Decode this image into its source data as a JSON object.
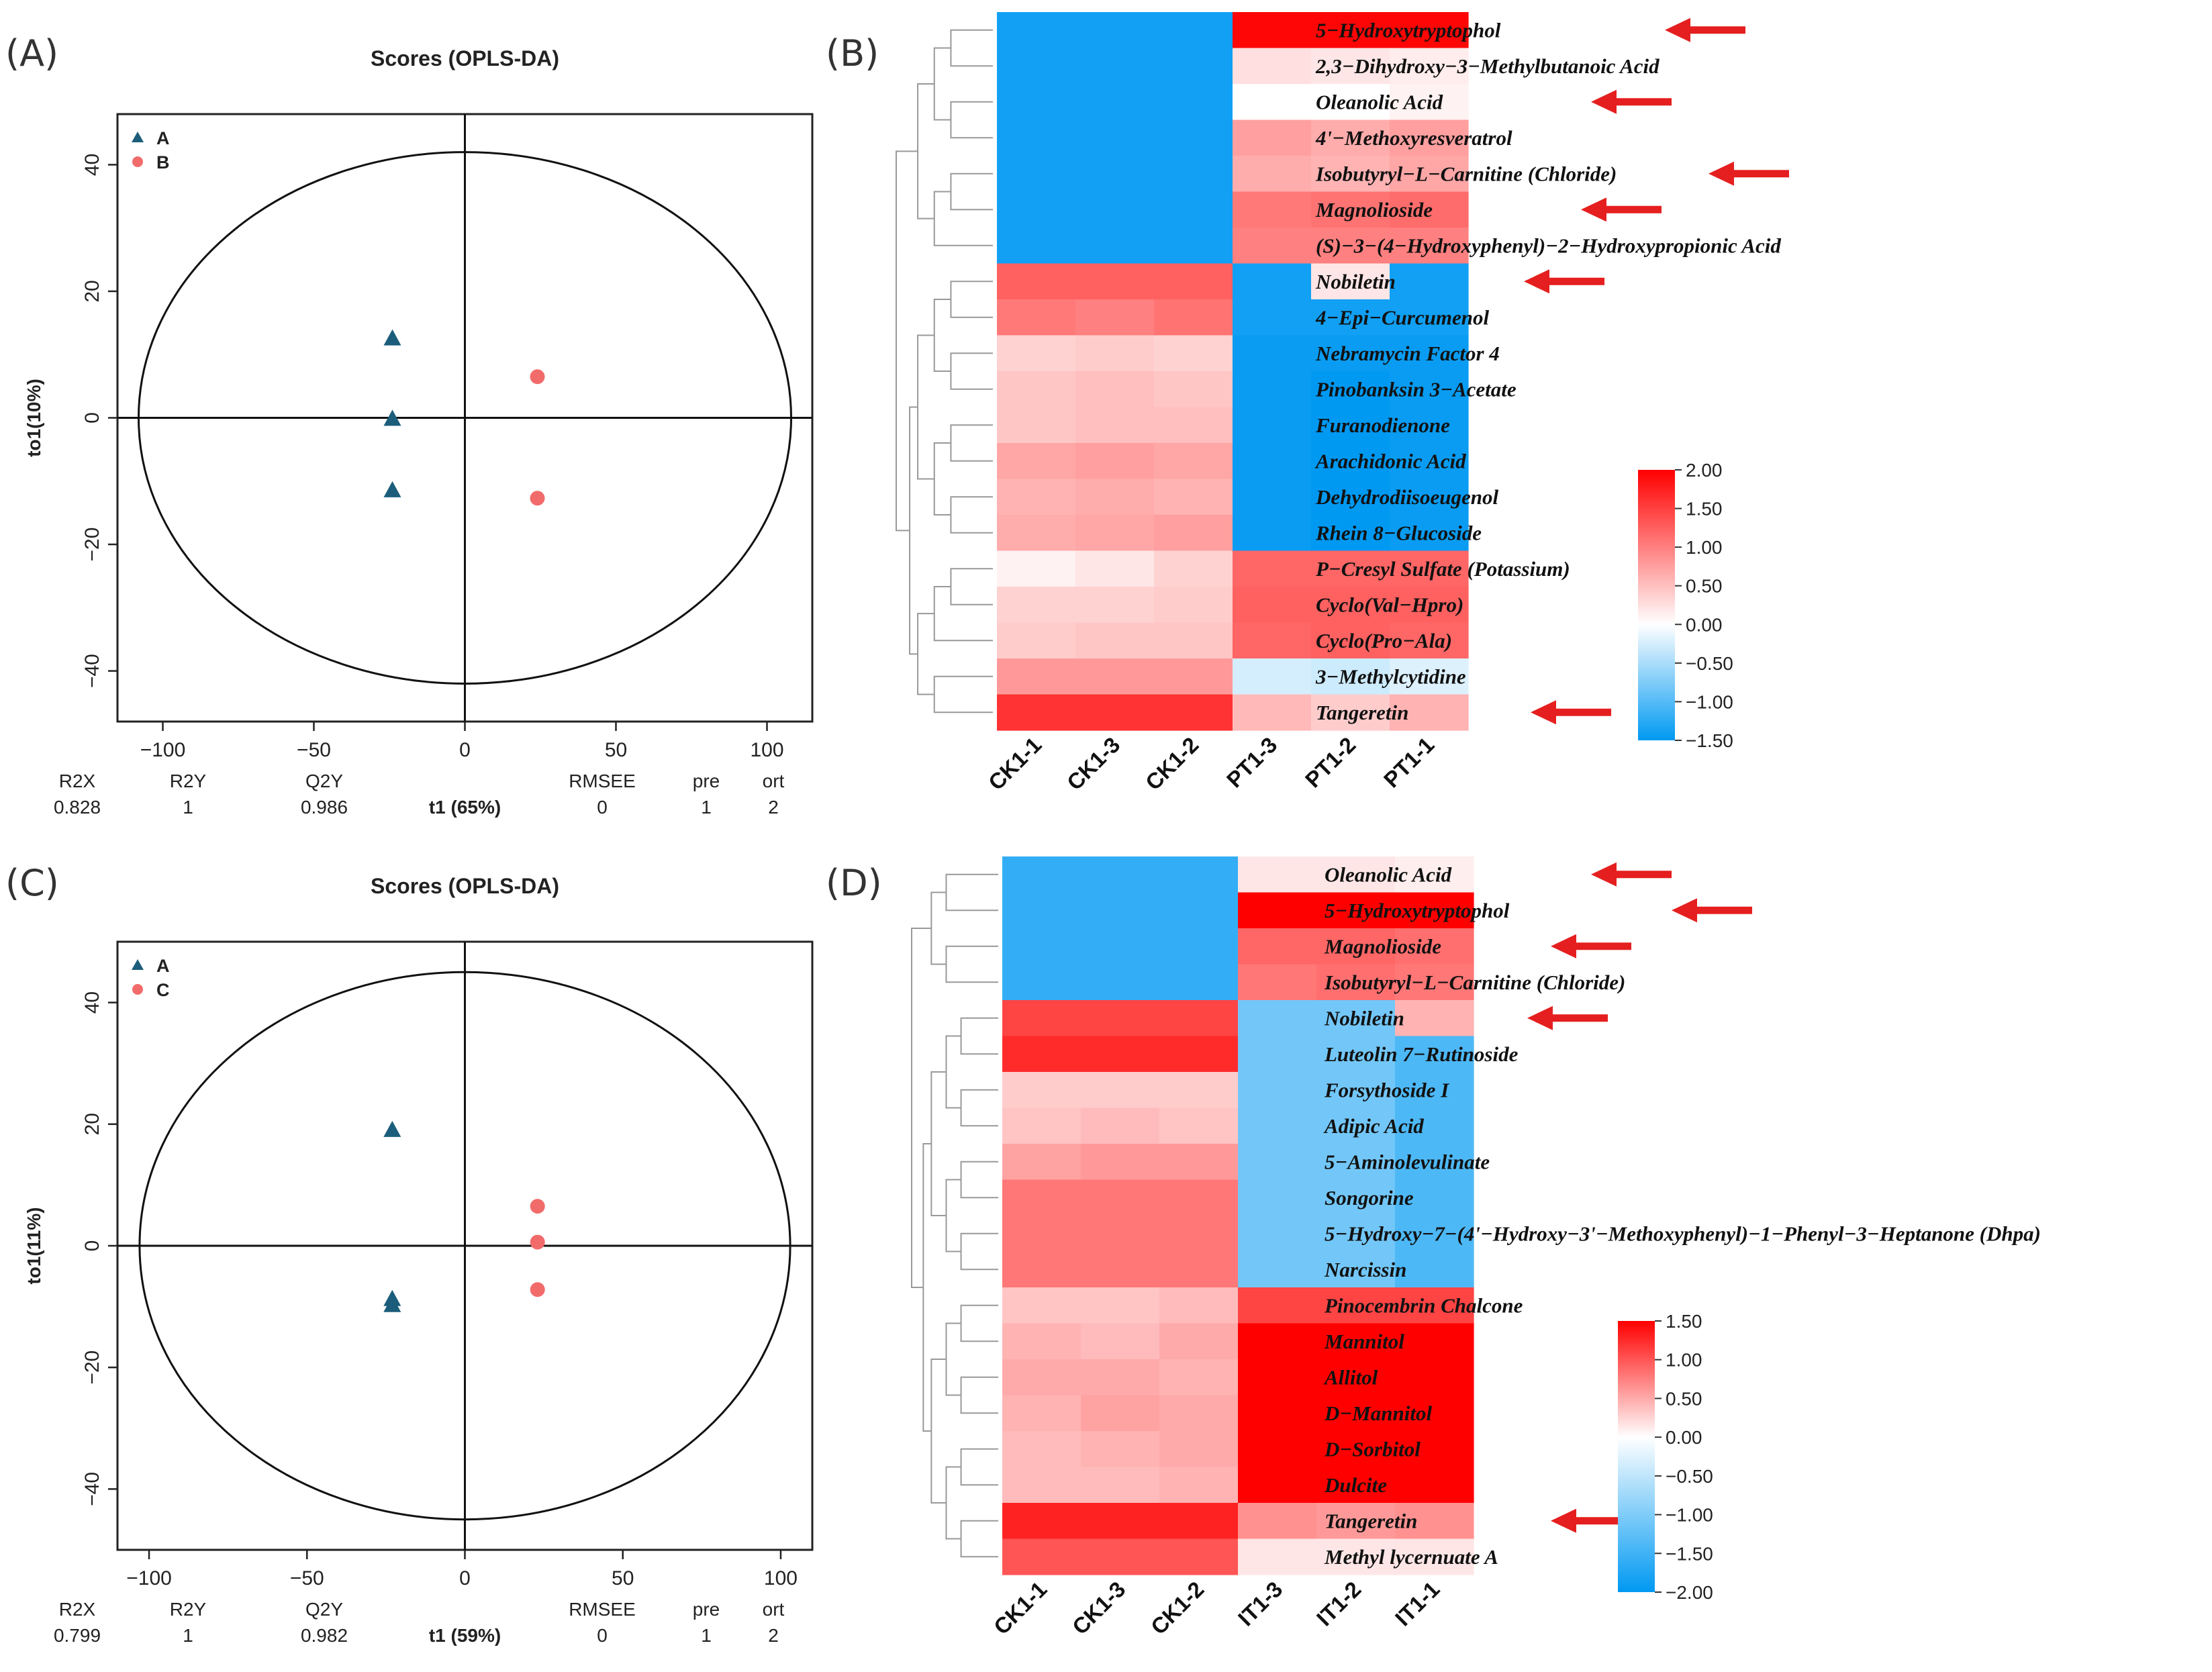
{
  "panel_labels": {
    "a": "(A)",
    "b": "(B)",
    "c": "(C)",
    "d": "(D)"
  },
  "chart_data": [
    {
      "type": "scatter",
      "title": "Scores (OPLS-DA)",
      "xlabel": "t1 (65%)",
      "ylabel": "to1(10%)",
      "xlim": [
        -115,
        115
      ],
      "ylim": [
        -48,
        48
      ],
      "xticks": [
        -100,
        -50,
        0,
        50,
        100
      ],
      "yticks": [
        -40,
        -20,
        0,
        20,
        40
      ],
      "xtick_labels": [
        "−100",
        "−50",
        "0",
        "50",
        "100"
      ],
      "ytick_labels": [
        "−40",
        "−20",
        "0",
        "20",
        "40"
      ],
      "ellipse": {
        "rx": 108,
        "ry": 42
      },
      "legend": {
        "position": "top-left",
        "entries": [
          "A",
          "B"
        ]
      },
      "series": [
        {
          "name": "A",
          "marker": "triangle",
          "color": "#1b5d7b",
          "points": [
            [
              -24,
              12.5
            ],
            [
              -24,
              -0.2
            ],
            [
              -24,
              -11.5
            ]
          ]
        },
        {
          "name": "B",
          "marker": "circle",
          "color": "#f26b6b",
          "points": [
            [
              24,
              6.5
            ],
            [
              24,
              -12.7
            ]
          ]
        }
      ],
      "stats": {
        "labels": [
          "R2X",
          "R2Y",
          "Q2Y",
          "RMSEE",
          "pre",
          "ort"
        ],
        "values": [
          "0.828",
          "1",
          "0.986",
          "0",
          "1",
          "2"
        ]
      }
    },
    {
      "type": "heatmap",
      "columns": [
        "CK1-1",
        "CK1-3",
        "CK1-2",
        "PT1-3",
        "PT1-2",
        "PT1-1"
      ],
      "rows": [
        "5−Hydroxytryptophol",
        "2,3−Dihydroxy−3−Methylbutanoic Acid",
        "Oleanolic Acid",
        "4'−Methoxyresveratrol",
        "Isobutyryl−L−Carnitine (Chloride)",
        "Magnolioside",
        "(S)−3−(4−Hydroxyphenyl)−2−Hydroxypropionic Acid",
        "Nobiletin",
        "4−Epi−Curcumenol",
        "Nebramycin Factor 4",
        "Pinobanksin 3−Acetate",
        "Furanodienone",
        "Arachidonic Acid",
        "Dehydrodiisoeugenol",
        "Rhein 8−Glucoside",
        "P−Cresyl Sulfate (Potassium)",
        "Cyclo(Val−Hpro)",
        "Cyclo(Pro−Ala)",
        "3−Methylcytidine",
        "Tangeretin"
      ],
      "arrow_rows": [
        0,
        2,
        4,
        5,
        7,
        19
      ],
      "values": [
        [
          -1.4,
          -1.4,
          -1.4,
          1.95,
          1.95,
          1.95
        ],
        [
          -1.4,
          -1.4,
          -1.4,
          0.25,
          0.2,
          0.15
        ],
        [
          -1.4,
          -1.4,
          -1.4,
          0.0,
          0.0,
          0.1
        ],
        [
          -1.4,
          -1.4,
          -1.4,
          0.75,
          0.65,
          0.75
        ],
        [
          -1.4,
          -1.4,
          -1.4,
          0.65,
          0.6,
          0.7
        ],
        [
          -1.4,
          -1.4,
          -1.4,
          1.05,
          1.1,
          1.15
        ],
        [
          -1.4,
          -1.4,
          -1.4,
          1.0,
          1.0,
          1.0
        ],
        [
          1.25,
          1.25,
          1.25,
          -1.4,
          0.2,
          -1.4
        ],
        [
          1.05,
          1.0,
          1.1,
          -1.4,
          -1.4,
          -1.4
        ],
        [
          0.35,
          0.4,
          0.35,
          -1.45,
          -1.45,
          -1.45
        ],
        [
          0.45,
          0.5,
          0.45,
          -1.45,
          -1.5,
          -1.45
        ],
        [
          0.45,
          0.5,
          0.5,
          -1.45,
          -1.5,
          -1.45
        ],
        [
          0.7,
          0.75,
          0.7,
          -1.45,
          -1.5,
          -1.45
        ],
        [
          0.6,
          0.65,
          0.6,
          -1.45,
          -1.5,
          -1.45
        ],
        [
          0.65,
          0.7,
          0.75,
          -1.45,
          -1.5,
          -1.45
        ],
        [
          0.1,
          0.2,
          0.35,
          1.2,
          1.2,
          1.2
        ],
        [
          0.35,
          0.35,
          0.4,
          1.25,
          1.25,
          1.25
        ],
        [
          0.4,
          0.45,
          0.45,
          1.2,
          1.25,
          1.2
        ],
        [
          0.8,
          0.8,
          0.8,
          -0.25,
          -0.3,
          -0.2
        ],
        [
          1.6,
          1.6,
          1.6,
          0.55,
          0.4,
          0.6
        ]
      ],
      "colorbar": {
        "min": -1.5,
        "max": 2.0,
        "tick_labels": [
          "2.00",
          "1.50",
          "1.00",
          "0.50",
          "0.00",
          "−0.50",
          "−1.00",
          "−1.50"
        ]
      }
    },
    {
      "type": "scatter",
      "title": "Scores (OPLS-DA)",
      "xlabel": "t1 (59%)",
      "ylabel": "to1(11%)",
      "xlim": [
        -110,
        110
      ],
      "ylim": [
        -50,
        50
      ],
      "xticks": [
        -100,
        -50,
        0,
        50,
        100
      ],
      "yticks": [
        -40,
        -20,
        0,
        20,
        40
      ],
      "xtick_labels": [
        "−100",
        "−50",
        "0",
        "50",
        "100"
      ],
      "ytick_labels": [
        "−40",
        "−20",
        "0",
        "20",
        "40"
      ],
      "ellipse": {
        "rx": 103,
        "ry": 45
      },
      "legend": {
        "position": "top-left",
        "entries": [
          "A",
          "C"
        ]
      },
      "series": [
        {
          "name": "A",
          "marker": "triangle",
          "color": "#1b5d7b",
          "points": [
            [
              -23,
              19
            ],
            [
              -23,
              -8.8
            ],
            [
              -23,
              -9.8
            ]
          ]
        },
        {
          "name": "C",
          "marker": "circle",
          "color": "#f26b6b",
          "points": [
            [
              23,
              6.5
            ],
            [
              23,
              0.6
            ],
            [
              23,
              -7.2
            ]
          ]
        }
      ],
      "stats": {
        "labels": [
          "R2X",
          "R2Y",
          "Q2Y",
          "RMSEE",
          "pre",
          "ort"
        ],
        "values": [
          "0.799",
          "1",
          "0.982",
          "0",
          "1",
          "2"
        ]
      }
    },
    {
      "type": "heatmap",
      "columns": [
        "CK1-1",
        "CK1-3",
        "CK1-2",
        "IT1-3",
        "IT1-2",
        "IT1-1"
      ],
      "rows": [
        "Oleanolic Acid",
        "5−Hydroxytryptophol",
        "Magnolioside",
        "Isobutyryl−L−Carnitine (Chloride)",
        "Nobiletin",
        "Luteolin 7−Rutinoside",
        "Forsythoside I",
        "Adipic Acid",
        "5−Aminolevulinate",
        "Songorine",
        "5−Hydroxy−7−(4'−Hydroxy−3'−Methoxyphenyl)−1−Phenyl−3−Heptanone (Dhpa)",
        "Narcissin",
        "Pinocembrin Chalcone",
        "Mannitol",
        "Allitol",
        "D−Mannitol",
        "D−Sorbitol",
        "Dulcite",
        "Tangeretin",
        "Methyl lycernuate A"
      ],
      "arrow_rows": [
        0,
        1,
        2,
        4,
        18
      ],
      "values": [
        [
          -1.6,
          -1.6,
          -1.6,
          0.15,
          0.15,
          0.1
        ],
        [
          -1.6,
          -1.6,
          -1.6,
          1.5,
          1.5,
          1.5
        ],
        [
          -1.6,
          -1.6,
          -1.6,
          0.9,
          0.9,
          0.85
        ],
        [
          -1.6,
          -1.6,
          -1.6,
          0.8,
          0.85,
          0.8
        ],
        [
          1.1,
          1.1,
          1.1,
          -1.1,
          -1.1,
          0.45
        ],
        [
          1.25,
          1.25,
          1.25,
          -1.1,
          -1.1,
          -1.4
        ],
        [
          0.3,
          0.3,
          0.3,
          -1.1,
          -1.1,
          -1.4
        ],
        [
          0.35,
          0.4,
          0.35,
          -1.1,
          -1.1,
          -1.4
        ],
        [
          0.55,
          0.6,
          0.6,
          -1.1,
          -1.1,
          -1.4
        ],
        [
          0.8,
          0.8,
          0.8,
          -1.1,
          -1.1,
          -1.4
        ],
        [
          0.8,
          0.8,
          0.8,
          -1.1,
          -1.1,
          -1.4
        ],
        [
          0.8,
          0.8,
          0.8,
          -1.1,
          -1.1,
          -1.4
        ],
        [
          0.35,
          0.35,
          0.4,
          1.1,
          1.1,
          1.1
        ],
        [
          0.45,
          0.4,
          0.5,
          1.5,
          1.5,
          1.5
        ],
        [
          0.5,
          0.5,
          0.45,
          1.5,
          1.5,
          1.5
        ],
        [
          0.45,
          0.55,
          0.5,
          1.5,
          1.5,
          1.5
        ],
        [
          0.4,
          0.45,
          0.5,
          1.5,
          1.5,
          1.5
        ],
        [
          0.4,
          0.4,
          0.45,
          1.5,
          1.5,
          1.5
        ],
        [
          1.3,
          1.3,
          1.3,
          0.65,
          0.6,
          0.65
        ],
        [
          1.0,
          1.0,
          1.0,
          0.15,
          0.15,
          0.15
        ]
      ],
      "colorbar": {
        "min": -2.0,
        "max": 1.5,
        "tick_labels": [
          "1.50",
          "1.00",
          "0.50",
          "0.00",
          "−0.50",
          "−1.00",
          "−1.50",
          "−2.00"
        ]
      }
    }
  ]
}
